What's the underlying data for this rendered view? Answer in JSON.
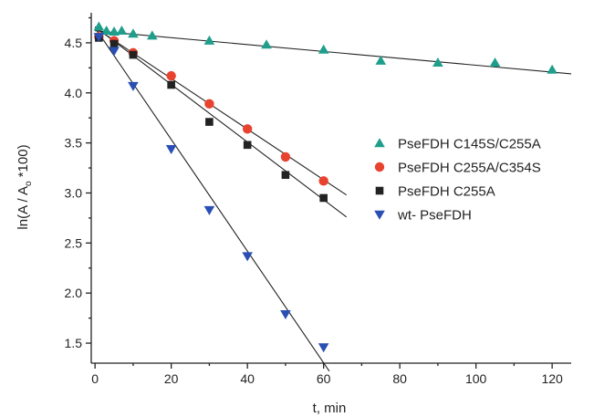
{
  "chart_data": {
    "type": "scatter",
    "title": "",
    "xlabel": "t, min",
    "ylabel_parts": {
      "pre": "ln(A / A",
      "sub": "o",
      "post": " *100)"
    },
    "xlim": [
      -1,
      125
    ],
    "ylim": [
      1.3,
      4.8
    ],
    "x_ticks": [
      0,
      20,
      40,
      60,
      80,
      100,
      120
    ],
    "x_tick_labels": [
      "0",
      "20",
      "40",
      "60",
      "80",
      "100",
      "120"
    ],
    "y_ticks": [
      1.5,
      2.0,
      2.5,
      3.0,
      3.5,
      4.0,
      4.5
    ],
    "y_tick_labels": [
      "1.5",
      "2.0",
      "2.5",
      "3.0",
      "3.5",
      "4.0",
      "4.5"
    ],
    "grid": false,
    "legend_position": "right",
    "series": [
      {
        "name": "PseFDH C145S/C255A",
        "marker": "triangle-up",
        "color": "#1f9e8c",
        "points": [
          [
            1,
            4.66
          ],
          [
            3,
            4.62
          ],
          [
            5,
            4.61
          ],
          [
            7,
            4.62
          ],
          [
            10,
            4.59
          ],
          [
            15,
            4.57
          ],
          [
            30,
            4.52
          ],
          [
            45,
            4.48
          ],
          [
            60,
            4.43
          ],
          [
            75,
            4.32
          ],
          [
            90,
            4.3
          ],
          [
            105,
            4.3
          ],
          [
            120,
            4.23
          ]
        ],
        "fit": [
          [
            0,
            4.62
          ],
          [
            125,
            4.19
          ]
        ]
      },
      {
        "name": "PseFDH C255A/C354S",
        "marker": "circle",
        "color": "#e8432f",
        "points": [
          [
            1,
            4.56
          ],
          [
            5,
            4.52
          ],
          [
            10,
            4.4
          ],
          [
            20,
            4.17
          ],
          [
            30,
            3.89
          ],
          [
            40,
            3.64
          ],
          [
            50,
            3.36
          ],
          [
            60,
            3.12
          ]
        ],
        "fit": [
          [
            0,
            4.65
          ],
          [
            66,
            2.98
          ]
        ]
      },
      {
        "name": "PseFDH C255A",
        "marker": "square",
        "color": "#222222",
        "points": [
          [
            1,
            4.55
          ],
          [
            5,
            4.49
          ],
          [
            10,
            4.38
          ],
          [
            20,
            4.08
          ],
          [
            30,
            3.71
          ],
          [
            40,
            3.48
          ],
          [
            50,
            3.18
          ],
          [
            60,
            2.95
          ]
        ],
        "fit": [
          [
            0,
            4.66
          ],
          [
            66,
            2.76
          ]
        ]
      },
      {
        "name": "wt- PseFDH",
        "marker": "triangle-down",
        "color": "#2a4fb4",
        "points": [
          [
            1,
            4.56
          ],
          [
            5,
            4.42
          ],
          [
            10,
            4.07
          ],
          [
            20,
            3.44
          ],
          [
            30,
            2.83
          ],
          [
            40,
            2.37
          ],
          [
            50,
            1.79
          ],
          [
            60,
            1.46
          ]
        ],
        "fit": [
          [
            0,
            4.65
          ],
          [
            61.5,
            1.22
          ]
        ]
      }
    ]
  }
}
